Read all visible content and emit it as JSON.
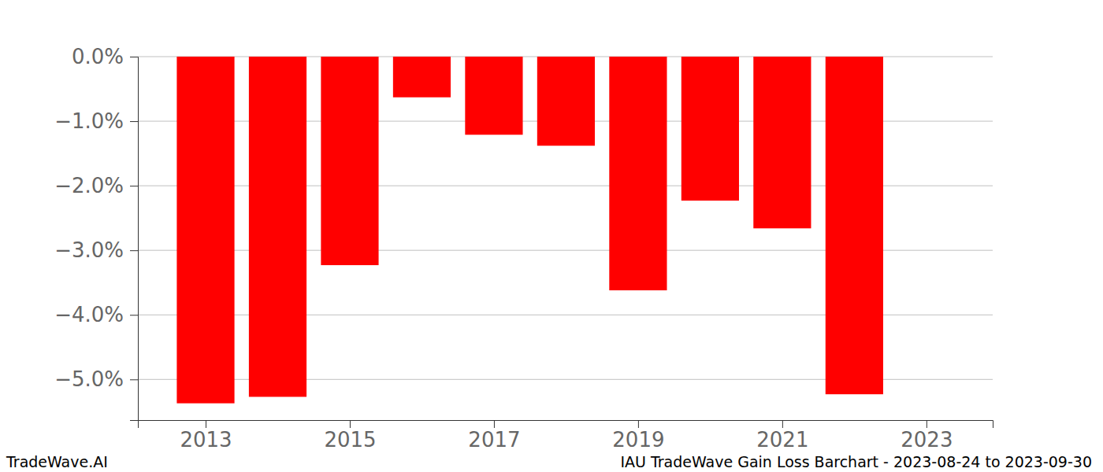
{
  "chart_data": {
    "type": "bar",
    "x": [
      2013,
      2014,
      2015,
      2016,
      2017,
      2018,
      2019,
      2020,
      2021,
      2022
    ],
    "values": [
      -5.37,
      -5.27,
      -3.23,
      -0.63,
      -1.21,
      -1.38,
      -3.62,
      -2.23,
      -2.66,
      -5.23
    ],
    "color": "#ff0000",
    "xlim": [
      2012.06,
      2023.92
    ],
    "xticks": [
      2013,
      2015,
      2017,
      2019,
      2021,
      2023
    ],
    "ylim": [
      -5.63,
      0
    ],
    "yticks": [
      {
        "value": 0,
        "label": "0.0%"
      },
      {
        "value": -1,
        "label": "−1.0%"
      },
      {
        "value": -2,
        "label": "−2.0%"
      },
      {
        "value": -3,
        "label": "−3.0%"
      },
      {
        "value": -4,
        "label": "−4.0%"
      },
      {
        "value": -5,
        "label": "−5.0%"
      }
    ],
    "grid": true,
    "annotations": [
      "TradeWave.AI",
      "IAU TradeWave Gain Loss Barchart - 2023-08-24 to 2023-09-30"
    ]
  }
}
